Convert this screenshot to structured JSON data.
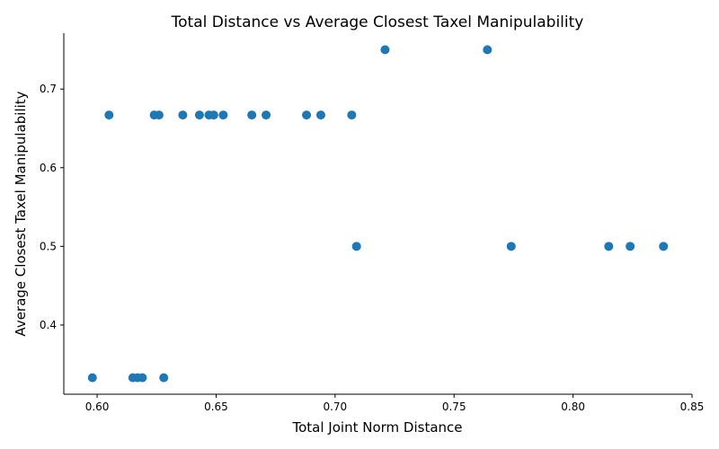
{
  "chart_data": {
    "type": "scatter",
    "title": "Total Distance vs Average Closest Taxel Manipulability",
    "xlabel": "Total Joint Norm Distance",
    "ylabel": "Average Closest Taxel Manipulability",
    "xlim": [
      0.586,
      0.85
    ],
    "ylim": [
      0.312,
      0.771
    ],
    "x_ticks": [
      0.6,
      0.65,
      0.7,
      0.75,
      0.8,
      0.85
    ],
    "x_tick_labels": [
      "0.60",
      "0.65",
      "0.70",
      "0.75",
      "0.80",
      "0.85"
    ],
    "y_ticks": [
      0.4,
      0.5,
      0.6,
      0.7
    ],
    "y_tick_labels": [
      "0.4",
      "0.5",
      "0.6",
      "0.7"
    ],
    "grid": false,
    "marker_color": "#1f77b4",
    "points": [
      {
        "x": 0.598,
        "y": 0.333
      },
      {
        "x": 0.605,
        "y": 0.667
      },
      {
        "x": 0.615,
        "y": 0.333
      },
      {
        "x": 0.617,
        "y": 0.333
      },
      {
        "x": 0.619,
        "y": 0.333
      },
      {
        "x": 0.624,
        "y": 0.667
      },
      {
        "x": 0.626,
        "y": 0.667
      },
      {
        "x": 0.628,
        "y": 0.333
      },
      {
        "x": 0.636,
        "y": 0.667
      },
      {
        "x": 0.643,
        "y": 0.667
      },
      {
        "x": 0.647,
        "y": 0.667
      },
      {
        "x": 0.649,
        "y": 0.667
      },
      {
        "x": 0.653,
        "y": 0.667
      },
      {
        "x": 0.665,
        "y": 0.667
      },
      {
        "x": 0.671,
        "y": 0.667
      },
      {
        "x": 0.688,
        "y": 0.667
      },
      {
        "x": 0.694,
        "y": 0.667
      },
      {
        "x": 0.707,
        "y": 0.667
      },
      {
        "x": 0.709,
        "y": 0.5
      },
      {
        "x": 0.721,
        "y": 0.75
      },
      {
        "x": 0.764,
        "y": 0.75
      },
      {
        "x": 0.774,
        "y": 0.5
      },
      {
        "x": 0.815,
        "y": 0.5
      },
      {
        "x": 0.824,
        "y": 0.5
      },
      {
        "x": 0.838,
        "y": 0.5
      }
    ]
  }
}
